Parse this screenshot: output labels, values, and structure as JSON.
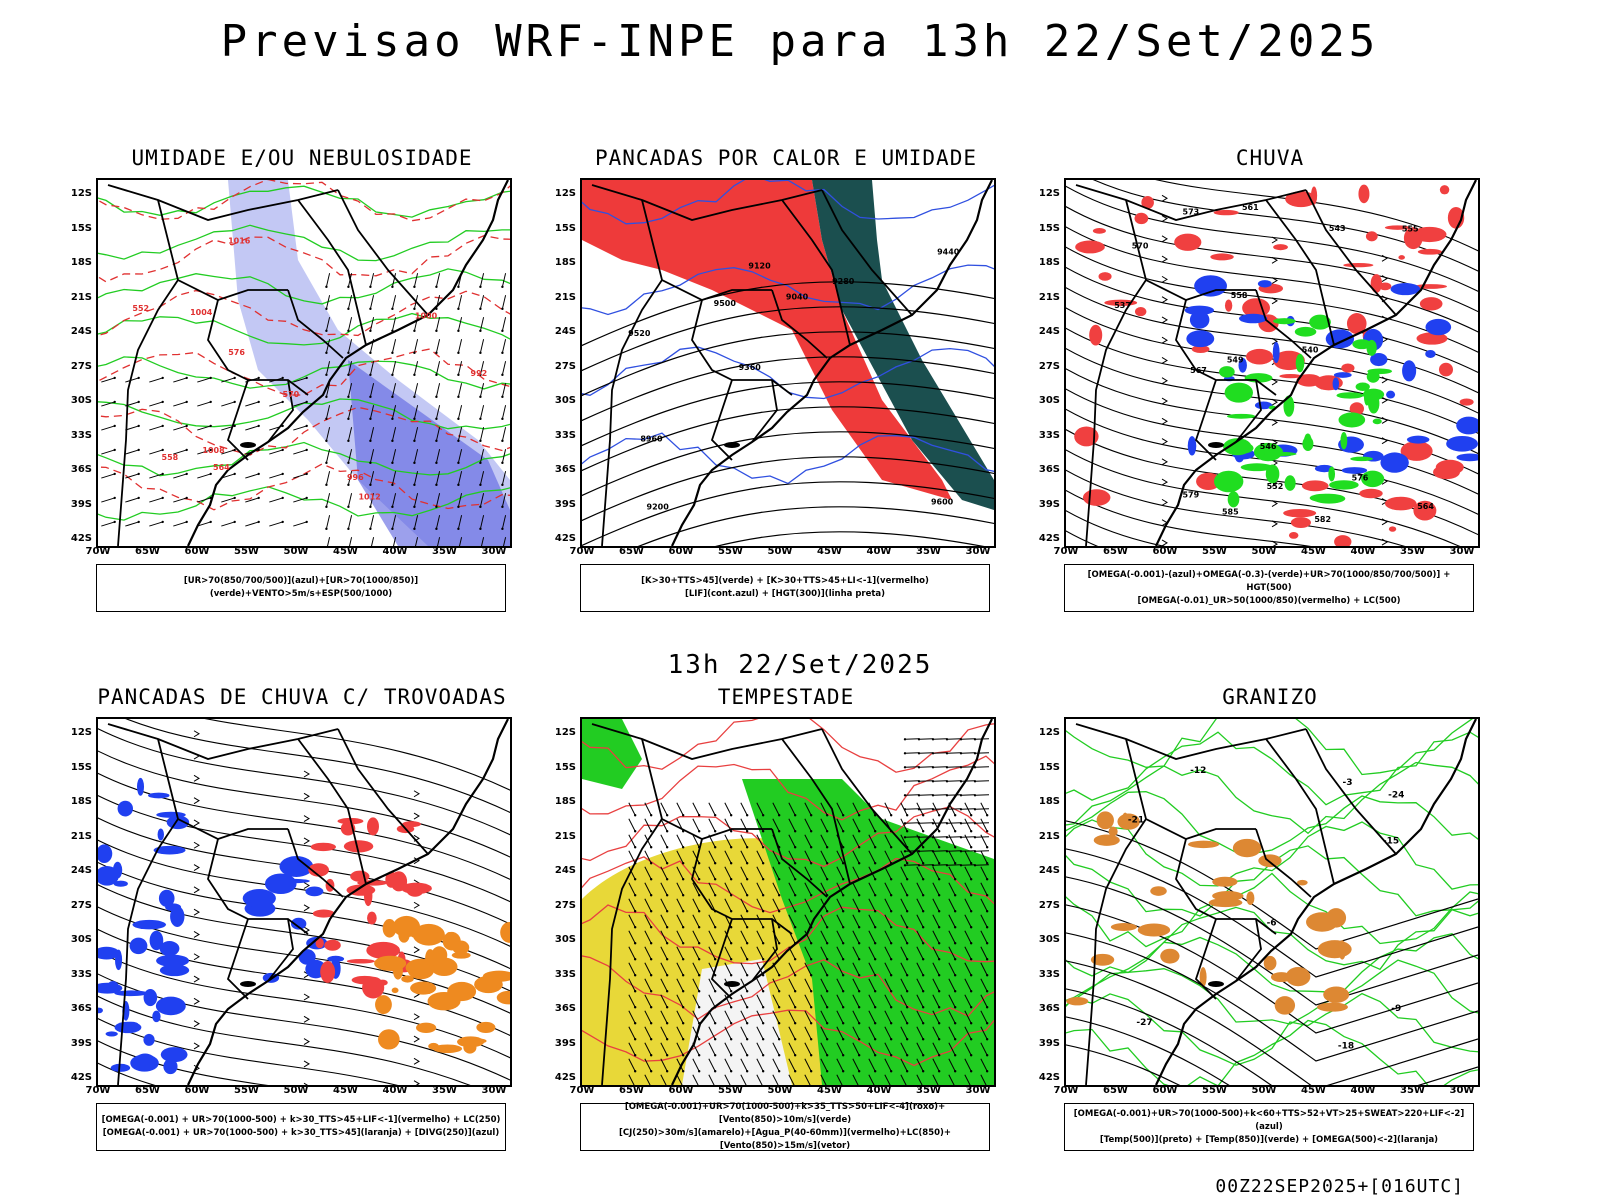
{
  "page": {
    "title": "Previsao WRF-INPE  para 13h 22/Set/2025",
    "mid_time": "13h 22/Set/2025",
    "footer": "00Z22SEP2025+[016UTC]"
  },
  "axes": {
    "lat_labels": [
      "12S",
      "15S",
      "18S",
      "21S",
      "24S",
      "27S",
      "30S",
      "33S",
      "36S",
      "39S",
      "42S"
    ],
    "lon_labels": [
      "70W",
      "65W",
      "60W",
      "55W",
      "50W",
      "45W",
      "40W",
      "35W",
      "30W"
    ]
  },
  "panels": [
    {
      "id": "umidade",
      "title": "UMIDADE E/OU NEBULOSIDADE",
      "legend": [
        "[UR>70(850/700/500)](azul)+[UR>70(1000/850)](verde)+VENTO>5m/s+ESP(500/1000)"
      ],
      "features": [
        "blue-humidity",
        "green-contours",
        "red-dashed-contours",
        "wind-arrows"
      ],
      "colors": {
        "blue": "#aab0f0",
        "green": "#22cc22",
        "red": "#e03030"
      },
      "labels": [
        "1012",
        "1016",
        "1008",
        "1004",
        "1000",
        "996",
        "992",
        "576",
        "570",
        "564",
        "558",
        "552"
      ]
    },
    {
      "id": "pancadas-calor",
      "title": "PANCADAS POR CALOR E UMIDADE",
      "legend": [
        "[K>30+TTS>45](verde) + [K>30+TTS>45+LI<-1](vermelho)",
        "[LIF](cont.azul) + [HGT(300)](linha preta)"
      ],
      "features": [
        "red-fill",
        "dark-teal-fill",
        "blue-contours",
        "black-contours"
      ],
      "colors": {
        "red": "#ee3a3a",
        "teal": "#1b4f4f",
        "blue": "#3050e0"
      },
      "labels": [
        "9600",
        "9520",
        "9440",
        "9360",
        "9280",
        "9200",
        "9120",
        "9040",
        "8960",
        "9500"
      ]
    },
    {
      "id": "chuva",
      "title": "CHUVA",
      "legend": [
        "[OMEGA(-0.001)-(azul)+OMEGA(-0.3)-(verde)+UR>70(1000/850/700/500)] + HGT(500)",
        "[OMEGA(-0.01)_UR>50(1000/850)(vermelho) + LC(500)"
      ],
      "features": [
        "red-patches",
        "blue-patches",
        "green-patches",
        "black-streamlines"
      ],
      "colors": {
        "red": "#f04040",
        "blue": "#2040f0",
        "green": "#20dd20"
      },
      "labels": [
        "585",
        "582",
        "579",
        "576",
        "573",
        "570",
        "567",
        "564",
        "561",
        "558",
        "555",
        "552",
        "549",
        "546",
        "543",
        "540",
        "537"
      ]
    },
    {
      "id": "trovoadas",
      "title": "PANCADAS DE CHUVA C/ TROVOADAS",
      "legend": [
        "[OMEGA(-0.001) + UR>70(1000-500) + k>30_TTS>45+LIF<-1](vermelho) + LC(250)",
        "[OMEGA(-0.001) + UR>70(1000-500) + k>30_TTS>45](laranja) + [DIVG(250)](azul)"
      ],
      "features": [
        "blue-dots",
        "red-patches",
        "orange-patches",
        "black-streamlines"
      ],
      "colors": {
        "blue": "#2040f0",
        "red": "#f04040",
        "orange": "#ee8a20"
      },
      "labels": []
    },
    {
      "id": "tempestade",
      "title": "TEMPESTADE",
      "legend": [
        "[OMEGA(-0.001)+UR>70(1000-500)+k>35_TTS>50+LIF<-4](roxo)+[Vento(850)>10m/s](verde)",
        "[CJ(250)>30m/s](amarelo)+[Agua_P(40-60mm)](vermelho)+LC(850)+[Vento(850)>15m/s](vetor)"
      ],
      "features": [
        "yellow-fill",
        "green-fill",
        "red-streamlines",
        "wind-vectors"
      ],
      "colors": {
        "yellow": "#e8d838",
        "green": "#22cc22",
        "red": "#e84040"
      },
      "labels": []
    },
    {
      "id": "granizo",
      "title": "GRANIZO",
      "legend": [
        "[OMEGA(-0.001)+UR>70(1000-500)+k<60+TTS>52+VT>25+SWEAT>220+LIF<-2](azul)",
        "[Temp(500)](preto) + [Temp(850)](verde) + [OMEGA(500)<-2](laranja)"
      ],
      "features": [
        "green-contours",
        "black-contours",
        "orange-specks"
      ],
      "colors": {
        "green": "#22cc22",
        "orange": "#dd8833"
      },
      "labels": [
        "-12",
        "-15",
        "-18",
        "-21",
        "-24",
        "-27",
        "-9",
        "-6",
        "-3"
      ]
    }
  ]
}
